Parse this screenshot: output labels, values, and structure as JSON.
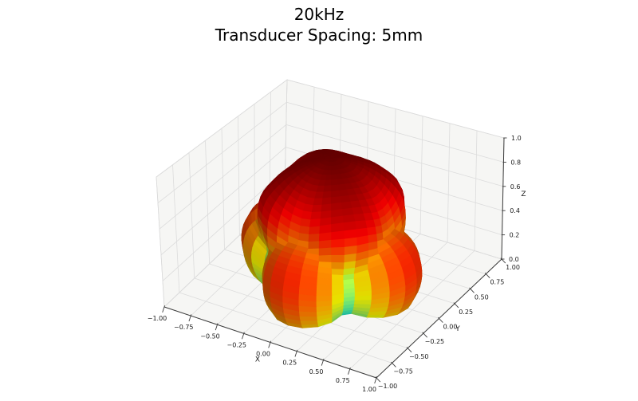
{
  "title": {
    "line1": "20kHz",
    "line2": "Transducer Spacing: 5mm"
  },
  "chart_data": {
    "type": "surface-3d",
    "title": "20kHz",
    "subtitle": "Transducer Spacing: 5mm",
    "colormap": "jet",
    "legend": "none",
    "grid": true,
    "axes": {
      "x": {
        "label": "X",
        "range": [
          -1,
          1
        ],
        "ticks": [
          -1,
          -0.75,
          -0.5,
          -0.25,
          0,
          0.25,
          0.5,
          0.75,
          1
        ],
        "tick_labels": [
          "−1.00",
          "−0.75",
          "−0.50",
          "−0.25",
          "0.00",
          "0.25",
          "0.50",
          "0.75",
          "1.00"
        ]
      },
      "y": {
        "label": "Y",
        "range": [
          -1,
          1
        ],
        "ticks": [
          -1,
          -0.75,
          -0.5,
          -0.25,
          0,
          0.25,
          0.5,
          0.75,
          1
        ],
        "tick_labels": [
          "−1.00",
          "−0.75",
          "−0.50",
          "−0.25",
          "0.00",
          "0.25",
          "0.50",
          "0.75",
          "1.00"
        ]
      },
      "z": {
        "label": "Z",
        "range": [
          0,
          1
        ],
        "ticks": [
          0,
          0.2,
          0.4,
          0.6,
          0.8,
          1
        ],
        "tick_labels": [
          "0.0",
          "0.2",
          "0.4",
          "0.6",
          "0.8",
          "1.0"
        ]
      }
    },
    "surface": {
      "kind": "acoustic-beam-pattern",
      "radial_peak": 1.0,
      "main_lobe": {
        "peak": 1.0,
        "direction": "broadside (+Z)",
        "exponent": 0.55,
        "diagonal_stretch": 0.22,
        "diagonal_dip": 0.45,
        "dip_band_deg": [
          35,
          70
        ]
      },
      "side_lobes": {
        "count": 4,
        "azimuths_deg": [
          0,
          90,
          180,
          270
        ],
        "elevation_deg": 64,
        "peak": 0.84,
        "exponent": 1.6
      },
      "mesh": {
        "n_theta": 30,
        "n_phi": 36
      }
    },
    "style": {
      "background": "#ffffff",
      "pane_color": "#f6f6f4",
      "pane_edge_color": "#d8d8d8",
      "grid_color": "#dcdcdc",
      "axis_color": "#3c3c3c",
      "text_color": "#1a1a1a",
      "colormap_low": "#000080",
      "colormap_high": "#800000",
      "light_direction": [
        0.8,
        -0.7,
        0.6
      ],
      "shade_min": 0.62,
      "shade_range": 0.38
    }
  }
}
